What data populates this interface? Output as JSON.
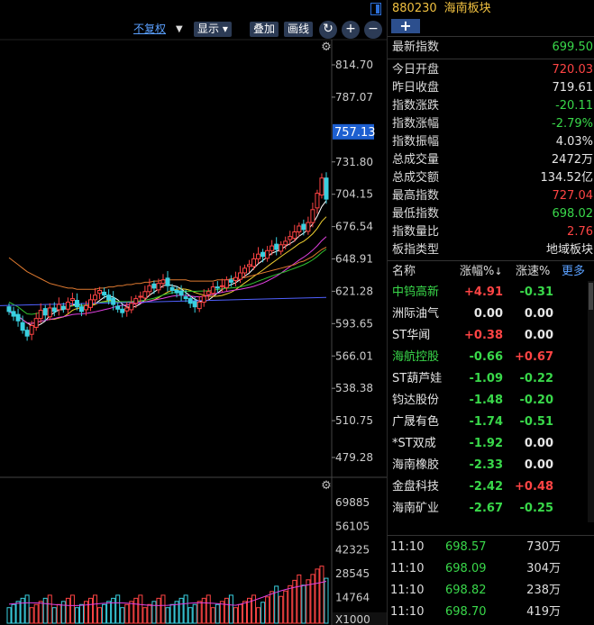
{
  "toolbar": {
    "adjust_label": "不复权",
    "display_label": "显示",
    "overlay_label": "叠加",
    "draw_label": "画线",
    "refresh_glyph": "↻",
    "plus_glyph": "+",
    "minus_glyph": "−"
  },
  "header": {
    "code": "880230",
    "name": "海南板块",
    "add_glyph": "+"
  },
  "latest": {
    "label": "最新指数",
    "value": "699.50"
  },
  "stats": [
    {
      "label": "今日开盘",
      "value": "720.03",
      "tone": "up"
    },
    {
      "label": "昨日收盘",
      "value": "719.61",
      "tone": "neutral"
    },
    {
      "label": "指数涨跌",
      "value": "-20.11",
      "tone": "down"
    },
    {
      "label": "指数涨幅",
      "value": "-2.79%",
      "tone": "down"
    },
    {
      "label": "指数振幅",
      "value": "4.03%",
      "tone": "neutral"
    },
    {
      "label": "总成交量",
      "value": "2472万",
      "tone": "neutral"
    },
    {
      "label": "总成交额",
      "value": "134.52亿",
      "tone": "neutral"
    },
    {
      "label": "最高指数",
      "value": "727.04",
      "tone": "up"
    },
    {
      "label": "最低指数",
      "value": "698.02",
      "tone": "down"
    },
    {
      "label": "指数量比",
      "value": "2.76",
      "tone": "up"
    },
    {
      "label": "板指类型",
      "value": "地域板块",
      "tone": "neutral"
    }
  ],
  "list_header": {
    "name": "名称",
    "change_pct": "涨幅%",
    "speed_pct": "涨速%",
    "more": "更多"
  },
  "stocks": [
    {
      "name": "中钨高新",
      "change": "+4.91",
      "change_tone": "up",
      "speed": "-0.31",
      "speed_tone": "down",
      "name_tone": "down"
    },
    {
      "name": "洲际油气",
      "change": "0.00",
      "change_tone": "neutral",
      "speed": "0.00",
      "speed_tone": "neutral",
      "name_tone": "neutral"
    },
    {
      "name": "ST华闻",
      "change": "+0.38",
      "change_tone": "up",
      "speed": "0.00",
      "speed_tone": "neutral",
      "name_tone": "neutral"
    },
    {
      "name": "海航控股",
      "change": "-0.66",
      "change_tone": "down",
      "speed": "+0.67",
      "speed_tone": "up",
      "name_tone": "down"
    },
    {
      "name": "ST葫芦娃",
      "change": "-1.09",
      "change_tone": "down",
      "speed": "-0.22",
      "speed_tone": "down",
      "name_tone": "neutral"
    },
    {
      "name": "钧达股份",
      "change": "-1.48",
      "change_tone": "down",
      "speed": "-0.20",
      "speed_tone": "down",
      "name_tone": "neutral"
    },
    {
      "name": "广晟有色",
      "change": "-1.74",
      "change_tone": "down",
      "speed": "-0.51",
      "speed_tone": "down",
      "name_tone": "neutral"
    },
    {
      "name": "*ST双成",
      "change": "-1.92",
      "change_tone": "down",
      "speed": "0.00",
      "speed_tone": "neutral",
      "name_tone": "neutral"
    },
    {
      "name": "海南橡胶",
      "change": "-2.33",
      "change_tone": "down",
      "speed": "0.00",
      "speed_tone": "neutral",
      "name_tone": "neutral"
    },
    {
      "name": "金盘科技",
      "change": "-2.42",
      "change_tone": "down",
      "speed": "+0.48",
      "speed_tone": "up",
      "name_tone": "neutral"
    },
    {
      "name": "海南矿业",
      "change": "-2.67",
      "change_tone": "down",
      "speed": "-0.25",
      "speed_tone": "down",
      "name_tone": "neutral"
    }
  ],
  "ticks": [
    {
      "time": "11:10",
      "price": "698.57",
      "volume": "730万"
    },
    {
      "time": "11:10",
      "price": "698.09",
      "volume": "304万"
    },
    {
      "time": "11:10",
      "price": "698.82",
      "volume": "238万"
    },
    {
      "time": "11:10",
      "price": "698.70",
      "volume": "419万"
    }
  ],
  "price_axis": [
    "814.70",
    "787.07",
    "757.13",
    "731.80",
    "704.15",
    "676.54",
    "648.91",
    "621.28",
    "593.65",
    "566.01",
    "538.38",
    "510.75",
    "479.28"
  ],
  "current_price_tag": "757.13",
  "volume_axis": [
    "69885",
    "56105",
    "42325",
    "28545",
    "14764",
    "X1000"
  ],
  "colors": {
    "up": "#ff4444",
    "down": "#39d84a",
    "accent_blue": "#2c4f8e",
    "header_yellow": "#f0c040"
  },
  "chart_data": {
    "type": "candlestick",
    "y_ticks": [
      814.7,
      787.07,
      731.8,
      704.15,
      676.54,
      648.91,
      621.28,
      593.65,
      566.01,
      538.38,
      510.75,
      479.28
    ],
    "ylim": [
      479.28,
      814.7
    ],
    "volume_ticks": [
      69885,
      56105,
      42325,
      28545,
      14764
    ],
    "volume_unit": "X1000",
    "closes": [
      604,
      600,
      596,
      588,
      583,
      592,
      598,
      605,
      601,
      607,
      604,
      610,
      606,
      612,
      615,
      608,
      604,
      609,
      614,
      618,
      622,
      618,
      614,
      610,
      606,
      603,
      607,
      611,
      615,
      617,
      621,
      626,
      624,
      628,
      631,
      626,
      622,
      620,
      618,
      615,
      611,
      608,
      612,
      617,
      621,
      625,
      624,
      626,
      631,
      629,
      633,
      637,
      641,
      644,
      649,
      653,
      651,
      656,
      660,
      657,
      661,
      664,
      668,
      672,
      677,
      674,
      680,
      691,
      705,
      718,
      700
    ],
    "ma_slow": [
      650,
      647,
      644,
      641,
      638,
      636,
      634,
      632,
      630,
      628,
      627,
      626,
      625,
      624,
      624,
      623,
      623,
      623,
      623,
      623,
      624,
      624,
      625,
      625,
      626,
      626,
      627,
      627,
      628,
      628,
      629,
      629,
      630,
      630,
      631,
      631,
      631,
      631,
      631,
      631,
      630,
      630,
      630,
      630,
      630,
      630,
      631,
      631,
      631,
      632,
      632,
      633,
      633,
      634,
      635,
      636,
      637,
      638,
      639,
      640,
      641,
      642,
      643,
      644,
      646,
      647,
      649,
      651,
      654,
      657,
      659
    ]
  }
}
